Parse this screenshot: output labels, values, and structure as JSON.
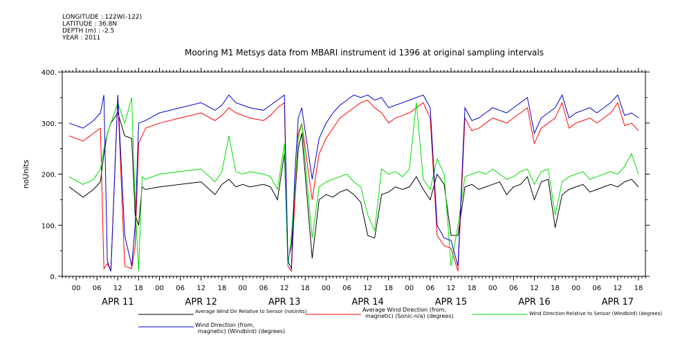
{
  "metadata": {
    "longitude": "LONGITUDE : 122W(-122)",
    "latitude": "LATITUDE : 36.8N",
    "depth": "DEPTH (m) : -2.5",
    "year": "YEAR : 2011"
  },
  "chart_data": {
    "type": "line",
    "title": "Mooring M1 Metsys data from MBARI instrument id 1396 at original sampling intervals",
    "xlabel": "",
    "ylabel": "noUnits",
    "ylim": [
      0,
      400
    ],
    "yticks": [
      0,
      100,
      200,
      300,
      400
    ],
    "ytick_labels": [
      "0.",
      "100.",
      "200.",
      "300.",
      "400."
    ],
    "xlim": [
      -4,
      164
    ],
    "x_hour_ticks": [
      "00",
      "06",
      "12",
      "18",
      "00",
      "06",
      "12",
      "18",
      "00",
      "06",
      "12",
      "18",
      "00",
      "06",
      "12",
      "18",
      "00",
      "06",
      "12",
      "18",
      "00",
      "06",
      "12",
      "18",
      "00",
      "06",
      "12",
      "18"
    ],
    "x_day_labels": [
      "APR 11",
      "APR 12",
      "APR 13",
      "APR 14",
      "APR 15",
      "APR 16",
      "APR 17"
    ],
    "grid": false,
    "legend_position": "bottom",
    "series": [
      {
        "name": "Average Wind Dir Relative to Sensor (noUnits)",
        "color": "#000000",
        "x": [
          -2,
          2,
          5,
          7,
          8,
          9,
          10,
          12,
          14,
          16,
          17,
          18,
          19,
          20,
          24,
          30,
          36,
          40,
          42,
          44,
          46,
          48,
          50,
          54,
          56,
          58,
          60,
          61,
          62,
          63,
          64,
          65,
          68,
          70,
          72,
          74,
          76,
          78,
          80,
          82,
          84,
          86,
          88,
          90,
          92,
          94,
          96,
          98,
          100,
          102,
          104,
          106,
          108,
          110,
          112,
          114,
          116,
          118,
          120,
          122,
          124,
          126,
          128,
          130,
          132,
          134,
          136,
          138,
          140,
          142,
          144,
          146,
          148,
          150,
          152,
          154,
          156,
          158,
          160,
          162
        ],
        "y": [
          175,
          155,
          170,
          185,
          240,
          280,
          300,
          320,
          275,
          270,
          120,
          100,
          175,
          170,
          175,
          180,
          185,
          160,
          180,
          190,
          175,
          180,
          175,
          180,
          175,
          150,
          240,
          30,
          60,
          150,
          250,
          280,
          35,
          150,
          160,
          155,
          165,
          170,
          160,
          145,
          80,
          75,
          160,
          165,
          175,
          170,
          175,
          195,
          170,
          150,
          200,
          180,
          80,
          80,
          175,
          180,
          170,
          175,
          180,
          185,
          160,
          175,
          180,
          195,
          150,
          185,
          190,
          95,
          160,
          170,
          175,
          180,
          165,
          170,
          175,
          180,
          175,
          185,
          190,
          175
        ]
      },
      {
        "name": "Average Wind Direction (from, magnetic) (Sonic-n/a) (degrees)",
        "color": "#ff0000",
        "x": [
          -2,
          2,
          5,
          7,
          8,
          9,
          10,
          12,
          14,
          16,
          17,
          18,
          20,
          24,
          30,
          36,
          40,
          42,
          44,
          46,
          48,
          50,
          54,
          56,
          58,
          60,
          61,
          62,
          63,
          64,
          65,
          68,
          70,
          72,
          74,
          76,
          78,
          80,
          82,
          84,
          86,
          88,
          90,
          92,
          94,
          96,
          98,
          100,
          102,
          104,
          106,
          108,
          110,
          112,
          114,
          116,
          118,
          120,
          122,
          124,
          126,
          128,
          130,
          132,
          134,
          136,
          138,
          140,
          142,
          144,
          146,
          148,
          150,
          152,
          154,
          156,
          158,
          160,
          162
        ],
        "y": [
          275,
          265,
          280,
          290,
          15,
          25,
          10,
          350,
          20,
          15,
          60,
          260,
          290,
          300,
          310,
          320,
          305,
          315,
          330,
          320,
          315,
          310,
          305,
          315,
          330,
          340,
          20,
          10,
          150,
          280,
          300,
          150,
          240,
          270,
          290,
          310,
          320,
          330,
          340,
          345,
          330,
          320,
          300,
          310,
          315,
          320,
          330,
          340,
          310,
          80,
          60,
          55,
          10,
          310,
          285,
          290,
          300,
          310,
          305,
          300,
          310,
          320,
          330,
          260,
          290,
          300,
          310,
          340,
          290,
          300,
          305,
          310,
          300,
          310,
          320,
          340,
          295,
          300,
          285
        ]
      },
      {
        "name": "Wind Direction Relative to Sensor (Windbird) (degrees)",
        "color": "#00dd00",
        "x": [
          -2,
          2,
          5,
          7,
          8,
          9,
          10,
          12,
          14,
          16,
          17,
          18,
          19,
          20,
          24,
          30,
          36,
          40,
          42,
          44,
          46,
          48,
          50,
          54,
          56,
          58,
          60,
          61,
          62,
          63,
          64,
          65,
          68,
          70,
          72,
          74,
          76,
          78,
          80,
          82,
          84,
          86,
          88,
          90,
          92,
          94,
          96,
          98,
          100,
          102,
          104,
          106,
          108,
          110,
          112,
          114,
          116,
          118,
          120,
          122,
          124,
          126,
          128,
          130,
          132,
          134,
          136,
          138,
          140,
          142,
          144,
          146,
          148,
          150,
          152,
          154,
          156,
          158,
          160,
          162
        ],
        "y": [
          195,
          180,
          190,
          210,
          250,
          280,
          300,
          340,
          300,
          350,
          140,
          10,
          195,
          190,
          200,
          205,
          210,
          185,
          205,
          275,
          205,
          200,
          205,
          200,
          195,
          170,
          260,
          20,
          80,
          170,
          270,
          300,
          75,
          175,
          185,
          190,
          195,
          200,
          185,
          175,
          120,
          90,
          210,
          200,
          205,
          195,
          210,
          340,
          190,
          170,
          230,
          200,
          20,
          100,
          195,
          200,
          205,
          200,
          210,
          200,
          190,
          195,
          205,
          210,
          180,
          205,
          210,
          120,
          185,
          195,
          200,
          205,
          190,
          195,
          200,
          205,
          200,
          215,
          240,
          200
        ]
      },
      {
        "name": "Wind Direction (from, magnetic) (Windbird) (degrees)",
        "color": "#0000cc",
        "x": [
          -2,
          2,
          5,
          7,
          8,
          9,
          10,
          12,
          14,
          16,
          17,
          18,
          20,
          24,
          30,
          36,
          40,
          42,
          44,
          46,
          48,
          50,
          54,
          56,
          58,
          60,
          61,
          62,
          63,
          64,
          65,
          68,
          70,
          72,
          74,
          76,
          78,
          80,
          82,
          84,
          86,
          88,
          90,
          92,
          94,
          96,
          98,
          100,
          102,
          104,
          106,
          108,
          110,
          112,
          114,
          116,
          118,
          120,
          122,
          124,
          126,
          128,
          130,
          132,
          134,
          136,
          138,
          140,
          142,
          144,
          146,
          148,
          150,
          152,
          154,
          156,
          158,
          160,
          162
        ],
        "y": [
          300,
          290,
          305,
          320,
          355,
          30,
          10,
          355,
          80,
          20,
          100,
          300,
          305,
          320,
          330,
          340,
          325,
          335,
          355,
          340,
          335,
          330,
          325,
          335,
          345,
          355,
          30,
          15,
          200,
          310,
          330,
          190,
          270,
          300,
          320,
          335,
          345,
          355,
          350,
          355,
          345,
          350,
          330,
          335,
          340,
          345,
          350,
          355,
          330,
          100,
          75,
          70,
          20,
          330,
          305,
          310,
          320,
          330,
          325,
          320,
          330,
          340,
          350,
          280,
          310,
          320,
          330,
          355,
          310,
          320,
          325,
          330,
          320,
          330,
          340,
          355,
          315,
          320,
          310
        ]
      }
    ]
  }
}
